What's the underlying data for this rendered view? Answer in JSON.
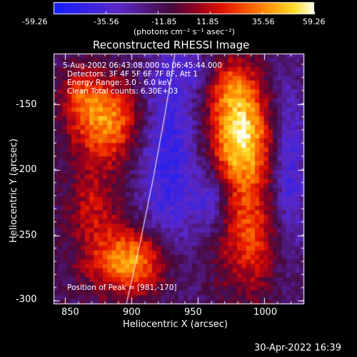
{
  "colorbar": {
    "ticks": [
      "-59.26",
      "-35.56",
      "-11.85",
      "11.85",
      "35.56",
      "59.26"
    ],
    "units": "(photons cm⁻² s⁻¹ asec⁻²)"
  },
  "title": "Reconstructed RHESSI Image",
  "info_lines": [
    "5-Aug-2002 06:43:08.000 to 06:45:44.000",
    "Detectors: 3F 4F 5F 6F 7F 8F, Att 1",
    "Energy Range: 3.0 - 6.0 keV",
    "Clean     Total counts: 6.30E+03"
  ],
  "peak_label": "Position of Peak = [981,-170]",
  "xaxis": {
    "label": "Heliocentric X (arcsec)",
    "ticks": [
      "850",
      "900",
      "950",
      "1000"
    ]
  },
  "yaxis": {
    "label": "Heliocentric Y (arcsec)",
    "ticks": [
      "-150",
      "-200",
      "-250",
      "-300"
    ]
  },
  "timestamp": "30-Apr-2022 16:39"
}
